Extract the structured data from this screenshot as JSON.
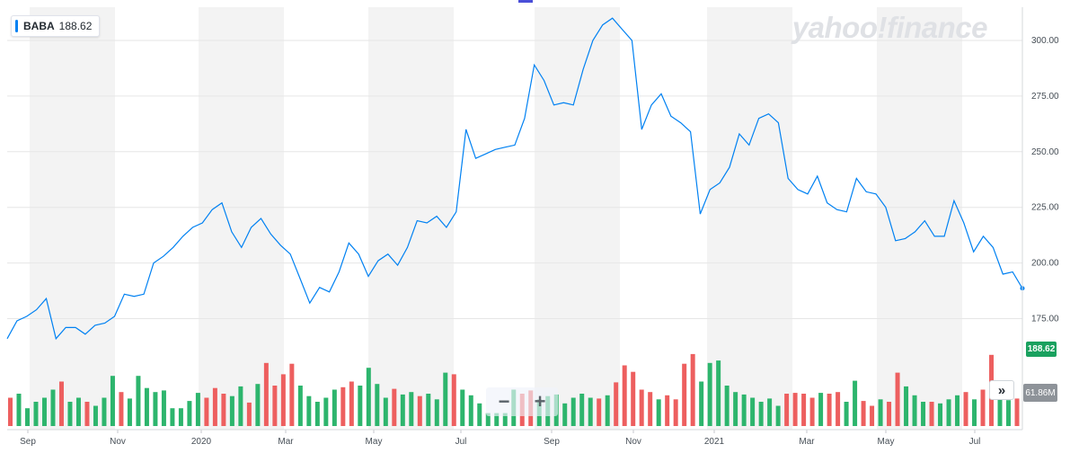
{
  "legend": {
    "symbol": "BABA",
    "value": "188.62"
  },
  "watermark": "yahoo!finance",
  "price_tag": "188.62",
  "volume_tag": "61.86M",
  "controls": {
    "zoom_out": "−",
    "zoom_in": "+",
    "scroll_right": "»"
  },
  "colors": {
    "line": "#0081f2",
    "up": "#2db56d",
    "down": "#ed5f5f",
    "band": "#f3f3f3",
    "grid": "#e6e6e6"
  },
  "chart_data": {
    "type": "line",
    "title": "",
    "series": [
      {
        "name": "BABA",
        "values": [
          166,
          174,
          176,
          179,
          184,
          166,
          171,
          171,
          168,
          172,
          173,
          176,
          186,
          185,
          186,
          200,
          203,
          207,
          212,
          216,
          218,
          224,
          227,
          214,
          207,
          216,
          220,
          213,
          208,
          204,
          193,
          182,
          189,
          187,
          196,
          209,
          204,
          194,
          201,
          204,
          199,
          207,
          219,
          218,
          221,
          216,
          223,
          260,
          247,
          249,
          251,
          252,
          253,
          265,
          289,
          282,
          271,
          272,
          271,
          287,
          300,
          307,
          310,
          305,
          300,
          260,
          271,
          276,
          266,
          263,
          259,
          222,
          233,
          236,
          243,
          258,
          253,
          265,
          267,
          263,
          238,
          233,
          231,
          239,
          227,
          224,
          223,
          238,
          232,
          231,
          225,
          210,
          211,
          214,
          219,
          212,
          212,
          228,
          218,
          205,
          212,
          207,
          195,
          196,
          188.62
        ]
      }
    ],
    "volume": [
      {
        "v": 0.35,
        "d": "down"
      },
      {
        "v": 0.4,
        "d": "up"
      },
      {
        "v": 0.22,
        "d": "up"
      },
      {
        "v": 0.3,
        "d": "up"
      },
      {
        "v": 0.35,
        "d": "up"
      },
      {
        "v": 0.45,
        "d": "up"
      },
      {
        "v": 0.55,
        "d": "down"
      },
      {
        "v": 0.3,
        "d": "up"
      },
      {
        "v": 0.35,
        "d": "up"
      },
      {
        "v": 0.3,
        "d": "down"
      },
      {
        "v": 0.25,
        "d": "up"
      },
      {
        "v": 0.35,
        "d": "up"
      },
      {
        "v": 0.62,
        "d": "up"
      },
      {
        "v": 0.42,
        "d": "down"
      },
      {
        "v": 0.34,
        "d": "up"
      },
      {
        "v": 0.62,
        "d": "up"
      },
      {
        "v": 0.47,
        "d": "up"
      },
      {
        "v": 0.42,
        "d": "up"
      },
      {
        "v": 0.44,
        "d": "up"
      },
      {
        "v": 0.22,
        "d": "up"
      },
      {
        "v": 0.22,
        "d": "up"
      },
      {
        "v": 0.31,
        "d": "up"
      },
      {
        "v": 0.41,
        "d": "up"
      },
      {
        "v": 0.35,
        "d": "down"
      },
      {
        "v": 0.47,
        "d": "down"
      },
      {
        "v": 0.4,
        "d": "down"
      },
      {
        "v": 0.37,
        "d": "up"
      },
      {
        "v": 0.49,
        "d": "up"
      },
      {
        "v": 0.29,
        "d": "down"
      },
      {
        "v": 0.52,
        "d": "up"
      },
      {
        "v": 0.78,
        "d": "down"
      },
      {
        "v": 0.5,
        "d": "down"
      },
      {
        "v": 0.64,
        "d": "down"
      },
      {
        "v": 0.77,
        "d": "down"
      },
      {
        "v": 0.5,
        "d": "up"
      },
      {
        "v": 0.37,
        "d": "up"
      },
      {
        "v": 0.3,
        "d": "up"
      },
      {
        "v": 0.35,
        "d": "up"
      },
      {
        "v": 0.45,
        "d": "up"
      },
      {
        "v": 0.48,
        "d": "down"
      },
      {
        "v": 0.55,
        "d": "down"
      },
      {
        "v": 0.5,
        "d": "up"
      },
      {
        "v": 0.72,
        "d": "up"
      },
      {
        "v": 0.52,
        "d": "up"
      },
      {
        "v": 0.35,
        "d": "up"
      },
      {
        "v": 0.46,
        "d": "down"
      },
      {
        "v": 0.39,
        "d": "up"
      },
      {
        "v": 0.42,
        "d": "up"
      },
      {
        "v": 0.37,
        "d": "down"
      },
      {
        "v": 0.4,
        "d": "up"
      },
      {
        "v": 0.33,
        "d": "up"
      },
      {
        "v": 0.66,
        "d": "up"
      },
      {
        "v": 0.64,
        "d": "down"
      },
      {
        "v": 0.45,
        "d": "up"
      },
      {
        "v": 0.38,
        "d": "up"
      },
      {
        "v": 0.28,
        "d": "up"
      },
      {
        "v": 0.16,
        "d": "up"
      },
      {
        "v": 0.16,
        "d": "up"
      },
      {
        "v": 0.16,
        "d": "up"
      },
      {
        "v": 0.45,
        "d": "up"
      },
      {
        "v": 0.4,
        "d": "down"
      },
      {
        "v": 0.44,
        "d": "down"
      },
      {
        "v": 0.33,
        "d": "up"
      },
      {
        "v": 0.37,
        "d": "up"
      },
      {
        "v": 0.39,
        "d": "up"
      },
      {
        "v": 0.28,
        "d": "up"
      },
      {
        "v": 0.35,
        "d": "up"
      },
      {
        "v": 0.4,
        "d": "up"
      },
      {
        "v": 0.35,
        "d": "up"
      },
      {
        "v": 0.34,
        "d": "down"
      },
      {
        "v": 0.38,
        "d": "up"
      },
      {
        "v": 0.54,
        "d": "down"
      },
      {
        "v": 0.75,
        "d": "down"
      },
      {
        "v": 0.67,
        "d": "down"
      },
      {
        "v": 0.45,
        "d": "down"
      },
      {
        "v": 0.42,
        "d": "down"
      },
      {
        "v": 0.33,
        "d": "up"
      },
      {
        "v": 0.38,
        "d": "down"
      },
      {
        "v": 0.33,
        "d": "down"
      },
      {
        "v": 0.77,
        "d": "down"
      },
      {
        "v": 0.89,
        "d": "down"
      },
      {
        "v": 0.55,
        "d": "up"
      },
      {
        "v": 0.78,
        "d": "up"
      },
      {
        "v": 0.81,
        "d": "up"
      },
      {
        "v": 0.5,
        "d": "up"
      },
      {
        "v": 0.42,
        "d": "up"
      },
      {
        "v": 0.39,
        "d": "up"
      },
      {
        "v": 0.35,
        "d": "up"
      },
      {
        "v": 0.3,
        "d": "up"
      },
      {
        "v": 0.34,
        "d": "up"
      },
      {
        "v": 0.25,
        "d": "up"
      },
      {
        "v": 0.4,
        "d": "down"
      },
      {
        "v": 0.41,
        "d": "down"
      },
      {
        "v": 0.4,
        "d": "down"
      },
      {
        "v": 0.35,
        "d": "down"
      },
      {
        "v": 0.41,
        "d": "up"
      },
      {
        "v": 0.4,
        "d": "down"
      },
      {
        "v": 0.42,
        "d": "down"
      },
      {
        "v": 0.3,
        "d": "up"
      },
      {
        "v": 0.56,
        "d": "up"
      },
      {
        "v": 0.31,
        "d": "down"
      },
      {
        "v": 0.25,
        "d": "down"
      },
      {
        "v": 0.33,
        "d": "up"
      },
      {
        "v": 0.3,
        "d": "down"
      },
      {
        "v": 0.66,
        "d": "down"
      },
      {
        "v": 0.49,
        "d": "up"
      },
      {
        "v": 0.38,
        "d": "up"
      },
      {
        "v": 0.3,
        "d": "up"
      },
      {
        "v": 0.3,
        "d": "down"
      },
      {
        "v": 0.28,
        "d": "up"
      },
      {
        "v": 0.33,
        "d": "up"
      },
      {
        "v": 0.38,
        "d": "up"
      },
      {
        "v": 0.42,
        "d": "down"
      },
      {
        "v": 0.33,
        "d": "up"
      },
      {
        "v": 0.45,
        "d": "down"
      },
      {
        "v": 0.88,
        "d": "down"
      },
      {
        "v": 0.36,
        "d": "up"
      },
      {
        "v": 0.32,
        "d": "up"
      },
      {
        "v": 0.34,
        "d": "down"
      }
    ],
    "x_labels": [
      "Sep",
      "Nov",
      "2020",
      "Mar",
      "May",
      "Jul",
      "Sep",
      "Nov",
      "2021",
      "Mar",
      "May",
      "Jul"
    ],
    "y_ticks": [
      300,
      275,
      250,
      225,
      200,
      175
    ],
    "ylim": [
      164,
      313
    ],
    "grid": true,
    "legend_position": "top-left"
  }
}
